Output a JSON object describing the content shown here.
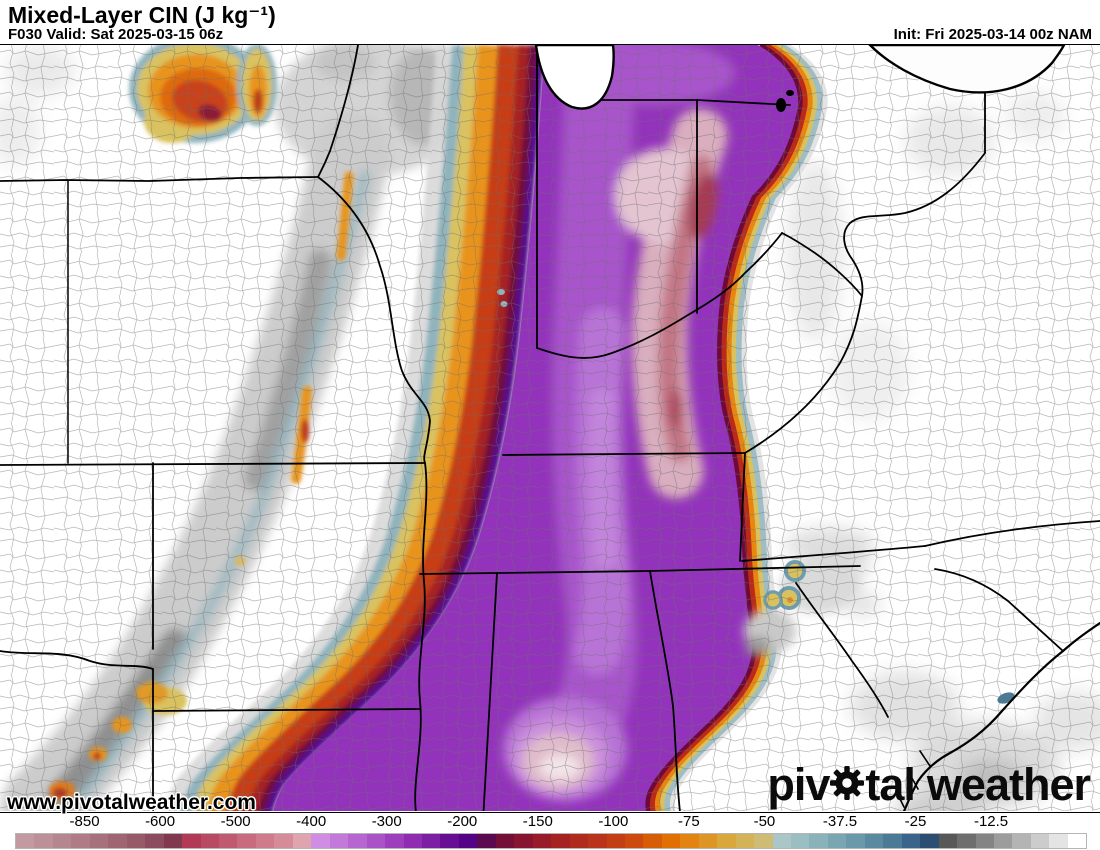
{
  "header": {
    "title": "Mixed-Layer CIN (J kg⁻¹)",
    "valid_label": "F030 Valid: Sat 2025-03-15 06z",
    "init_label": "Init: Fri 2025-03-14 00z NAM"
  },
  "map": {
    "watermark": "www.pivotalweather.com",
    "logo_left": "piv",
    "logo_mid": "tal",
    "logo_right": "weather"
  },
  "colorbar": {
    "segment_colors": [
      "#c49aa2",
      "#bd9099",
      "#b68690",
      "#af7b87",
      "#a7707d",
      "#9f6573",
      "#965a69",
      "#8c4c5d",
      "#81394e",
      "#b23a56",
      "#b94a63",
      "#c05a70",
      "#c86b7e",
      "#cf7b8b",
      "#d68c98",
      "#e0a4ae",
      "#cf8de4",
      "#c379da",
      "#b766d1",
      "#aa52c7",
      "#9d3fbd",
      "#8f2cb2",
      "#7d1fa5",
      "#670e95",
      "#550386",
      "#5c0a50",
      "#740f38",
      "#871430",
      "#981b2a",
      "#a42322",
      "#ae2b1e",
      "#b8341a",
      "#c23e14",
      "#cc4a0e",
      "#d65c06",
      "#e07004",
      "#e38412",
      "#dd9626",
      "#d8a83c",
      "#d4b258",
      "#cfbc74",
      "#aac6c6",
      "#9abec2",
      "#8ab2ba",
      "#7aa6b2",
      "#6a9aa9",
      "#5a8aa0",
      "#4a7a96",
      "#3a6489",
      "#2d4e73",
      "#585858",
      "#6e6e6e",
      "#848484",
      "#9c9c9c",
      "#b4b4b4",
      "#cccccc",
      "#e4e4e4",
      "#ffffff"
    ],
    "ticks": [
      {
        "label": "-850",
        "pos": 0.065
      },
      {
        "label": "-600",
        "pos": 0.1356
      },
      {
        "label": "-500",
        "pos": 0.2062
      },
      {
        "label": "-400",
        "pos": 0.2768
      },
      {
        "label": "-300",
        "pos": 0.3474
      },
      {
        "label": "-200",
        "pos": 0.418
      },
      {
        "label": "-150",
        "pos": 0.4886
      },
      {
        "label": "-100",
        "pos": 0.5592
      },
      {
        "label": "-75",
        "pos": 0.6298
      },
      {
        "label": "-50",
        "pos": 0.7004
      },
      {
        "label": "-37.5",
        "pos": 0.771
      },
      {
        "label": "-25",
        "pos": 0.8416
      },
      {
        "label": "-12.5",
        "pos": 0.9122
      }
    ]
  }
}
